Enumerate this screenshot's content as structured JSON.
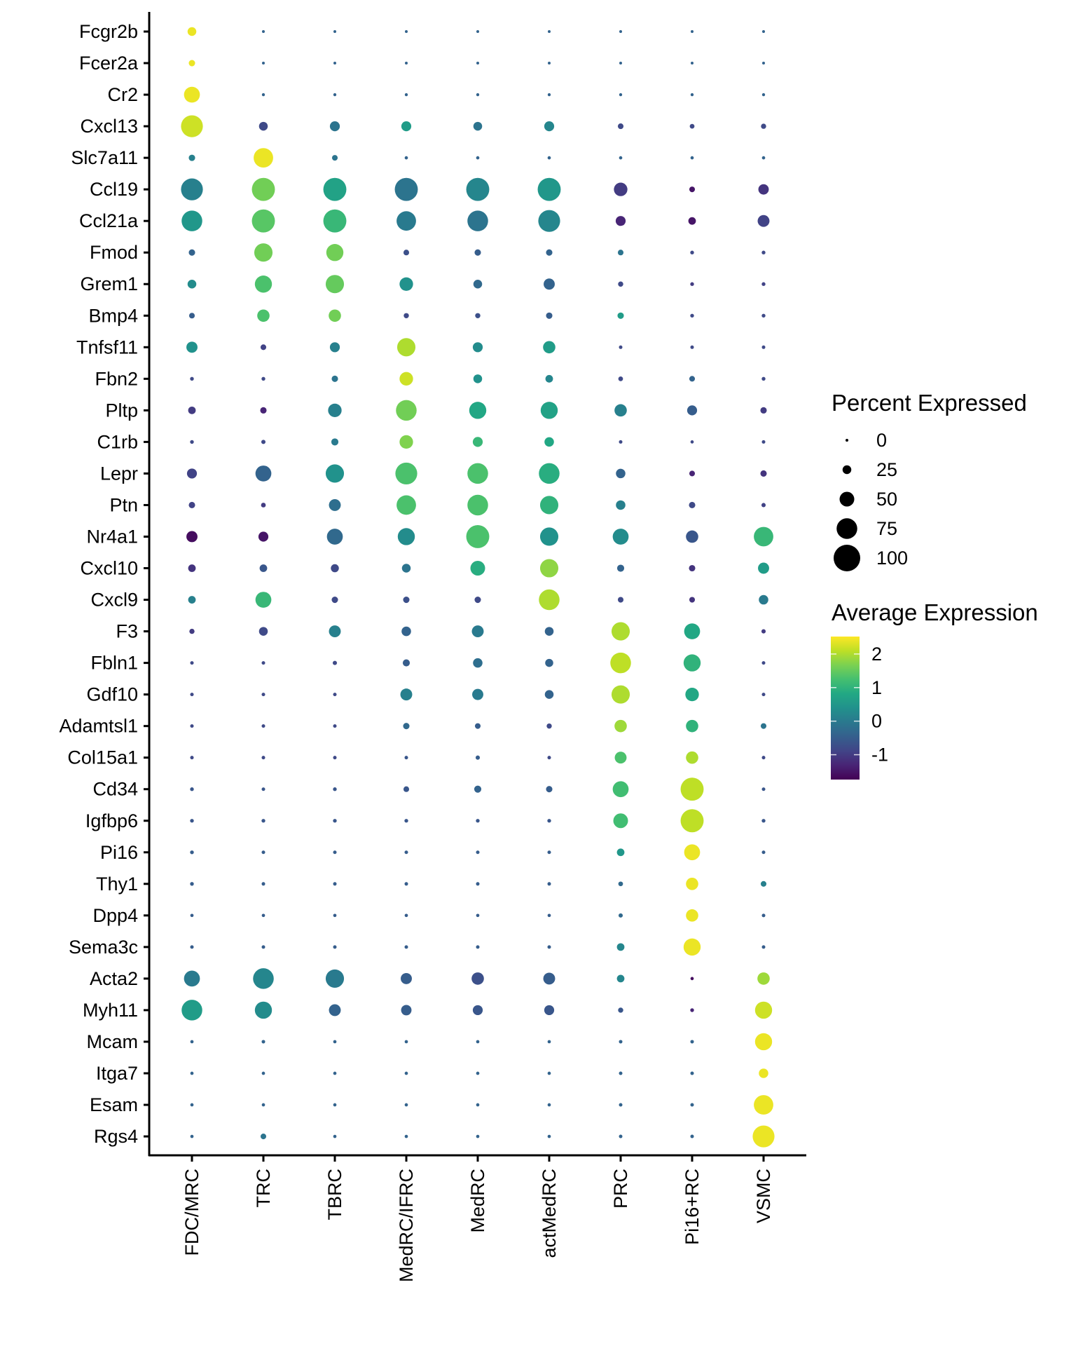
{
  "chart_data": {
    "type": "scatter",
    "subtype": "dot-plot",
    "title": "",
    "xlabel": "",
    "ylabel": "",
    "grid": false,
    "categories_x": [
      "FDC/MRC",
      "TRC",
      "TBRC",
      "MedRC/IFRC",
      "MedRC",
      "actMedRC",
      "PRC",
      "Pi16+RC",
      "VSMC"
    ],
    "genes_y": [
      "Fcgr2b",
      "Fcer2a",
      "Cr2",
      "Cxcl13",
      "Slc7a11",
      "Ccl19",
      "Ccl21a",
      "Fmod",
      "Grem1",
      "Bmp4",
      "Tnfsf11",
      "Fbn2",
      "Pltp",
      "C1rb",
      "Lepr",
      "Ptn",
      "Nr4a1",
      "Cxcl10",
      "Cxcl9",
      "F3",
      "Fbln1",
      "Gdf10",
      "Adamtsl1",
      "Col15a1",
      "Cd34",
      "Igfbp6",
      "Pi16",
      "Thy1",
      "Dpp4",
      "Sema3c",
      "Acta2",
      "Myh11",
      "Mcam",
      "Itga7",
      "Esam",
      "Rgs4"
    ],
    "percent_expressed": [
      [
        25,
        0,
        0,
        0,
        0,
        0,
        0,
        0,
        0
      ],
      [
        15,
        0,
        0,
        0,
        0,
        0,
        0,
        0,
        0
      ],
      [
        55,
        1,
        1,
        1,
        1,
        1,
        1,
        1,
        1
      ],
      [
        80,
        25,
        30,
        30,
        25,
        30,
        12,
        8,
        10
      ],
      [
        15,
        70,
        12,
        2,
        2,
        2,
        2,
        2,
        2
      ],
      [
        80,
        85,
        85,
        85,
        85,
        85,
        45,
        12,
        32
      ],
      [
        75,
        85,
        85,
        70,
        75,
        80,
        30,
        20,
        38
      ],
      [
        15,
        65,
        60,
        12,
        15,
        15,
        12,
        4,
        4
      ],
      [
        25,
        60,
        65,
        45,
        25,
        35,
        10,
        4,
        4
      ],
      [
        12,
        40,
        40,
        10,
        10,
        15,
        15,
        4,
        4
      ],
      [
        35,
        12,
        30,
        65,
        30,
        40,
        3,
        3,
        3
      ],
      [
        4,
        4,
        15,
        45,
        25,
        20,
        8,
        12,
        4
      ],
      [
        20,
        15,
        45,
        75,
        60,
        60,
        40,
        30,
        15
      ],
      [
        4,
        6,
        18,
        45,
        30,
        28,
        3,
        2,
        3
      ],
      [
        30,
        55,
        65,
        80,
        75,
        75,
        28,
        12,
        15
      ],
      [
        15,
        8,
        38,
        70,
        75,
        65,
        28,
        15,
        6
      ],
      [
        35,
        30,
        55,
        60,
        85,
        65,
        55,
        40,
        70
      ],
      [
        20,
        20,
        22,
        25,
        50,
        65,
        18,
        15,
        35
      ],
      [
        20,
        55,
        15,
        15,
        15,
        75,
        12,
        12,
        28
      ],
      [
        10,
        25,
        38,
        28,
        38,
        25,
        65,
        55,
        6
      ],
      [
        3,
        3,
        6,
        18,
        28,
        22,
        75,
        60,
        3
      ],
      [
        3,
        3,
        3,
        38,
        35,
        25,
        65,
        45,
        3
      ],
      [
        3,
        3,
        3,
        15,
        12,
        10,
        40,
        40,
        12
      ],
      [
        3,
        3,
        3,
        3,
        6,
        3,
        38,
        40,
        3
      ],
      [
        4,
        3,
        4,
        12,
        18,
        15,
        55,
        85,
        3
      ],
      [
        4,
        4,
        4,
        4,
        4,
        4,
        50,
        85,
        4
      ],
      [
        4,
        3,
        3,
        3,
        3,
        3,
        20,
        55,
        3
      ],
      [
        4,
        3,
        3,
        3,
        3,
        3,
        8,
        40,
        12
      ],
      [
        2,
        2,
        2,
        2,
        2,
        2,
        6,
        40,
        3
      ],
      [
        3,
        3,
        3,
        3,
        3,
        3,
        20,
        60,
        3
      ],
      [
        55,
        75,
        65,
        35,
        40,
        38,
        20,
        2,
        40
      ],
      [
        75,
        60,
        38,
        32,
        30,
        30,
        10,
        4,
        60
      ],
      [
        2,
        3,
        2,
        2,
        2,
        2,
        3,
        3,
        60
      ],
      [
        2,
        2,
        2,
        2,
        2,
        2,
        3,
        3,
        28
      ],
      [
        2,
        2,
        2,
        2,
        2,
        2,
        3,
        3,
        70
      ],
      [
        2,
        12,
        2,
        2,
        2,
        2,
        3,
        3,
        80
      ]
    ],
    "average_expression": [
      [
        2.4,
        -0.4,
        -0.4,
        -0.4,
        -0.4,
        -0.4,
        -0.4,
        -0.4,
        -0.4
      ],
      [
        2.4,
        -0.4,
        -0.4,
        -0.4,
        -0.4,
        -0.4,
        -0.4,
        -0.4,
        -0.4
      ],
      [
        2.4,
        -0.4,
        -0.4,
        -0.4,
        -0.4,
        -0.4,
        -0.4,
        -0.4,
        -0.4
      ],
      [
        2.2,
        -0.8,
        -0.1,
        0.6,
        -0.1,
        0.2,
        -0.8,
        -0.8,
        -0.8
      ],
      [
        0.1,
        2.4,
        -0.1,
        -0.4,
        -0.4,
        -0.4,
        -0.4,
        -0.4,
        -0.4
      ],
      [
        0.1,
        1.6,
        0.7,
        -0.1,
        0.2,
        0.5,
        -1.0,
        -1.5,
        -1.1
      ],
      [
        0.5,
        1.4,
        1.1,
        0.0,
        -0.1,
        0.2,
        -1.3,
        -1.5,
        -0.9
      ],
      [
        -0.4,
        1.6,
        1.6,
        -0.7,
        -0.5,
        -0.4,
        -0.1,
        -0.8,
        -0.8
      ],
      [
        0.3,
        1.3,
        1.5,
        0.4,
        -0.3,
        -0.4,
        -0.8,
        -1.0,
        -0.9
      ],
      [
        -0.5,
        1.3,
        1.6,
        -0.8,
        -0.7,
        -0.5,
        0.6,
        -0.8,
        -0.8
      ],
      [
        0.4,
        -0.9,
        0.1,
        2.0,
        0.3,
        0.6,
        -0.8,
        -0.8,
        -0.8
      ],
      [
        -0.8,
        -0.8,
        -0.1,
        2.2,
        0.4,
        0.2,
        -0.8,
        -0.4,
        -0.8
      ],
      [
        -1.0,
        -1.3,
        0.1,
        1.6,
        0.8,
        0.7,
        0.1,
        -0.5,
        -1.0
      ],
      [
        -0.8,
        -0.8,
        0.0,
        1.7,
        1.1,
        0.8,
        -0.8,
        -0.8,
        -0.8
      ],
      [
        -0.9,
        -0.4,
        0.4,
        1.3,
        1.3,
        0.9,
        -0.4,
        -1.3,
        -1.1
      ],
      [
        -0.9,
        -1.0,
        -0.2,
        1.3,
        1.3,
        1.0,
        0.1,
        -0.8,
        -0.9
      ],
      [
        -1.6,
        -1.5,
        -0.3,
        0.3,
        1.3,
        0.4,
        0.3,
        -0.6,
        1.1
      ],
      [
        -1.1,
        -0.6,
        -0.8,
        -0.1,
        0.9,
        1.8,
        -0.4,
        -1.1,
        0.6
      ],
      [
        0.1,
        1.1,
        -0.8,
        -0.7,
        -0.8,
        2.0,
        -0.8,
        -1.1,
        0.0
      ],
      [
        -1.0,
        -0.8,
        0.1,
        -0.4,
        0.0,
        -0.4,
        2.0,
        0.8,
        -1.0
      ],
      [
        -0.8,
        -0.8,
        -0.8,
        -0.5,
        -0.2,
        -0.4,
        2.1,
        1.0,
        -0.8
      ],
      [
        -0.8,
        -0.8,
        -0.8,
        0.1,
        0.0,
        -0.4,
        2.0,
        0.8,
        -0.8
      ],
      [
        -0.8,
        -0.8,
        -0.8,
        -0.3,
        -0.5,
        -0.8,
        1.9,
        1.0,
        -0.1
      ],
      [
        -0.8,
        -0.8,
        -0.8,
        -0.6,
        -0.5,
        -0.8,
        1.3,
        2.0,
        -0.8
      ],
      [
        -0.6,
        -0.6,
        -0.6,
        -0.6,
        -0.4,
        -0.5,
        1.2,
        2.1,
        -0.6
      ],
      [
        -0.6,
        -0.6,
        -0.6,
        -0.6,
        -0.6,
        -0.6,
        1.2,
        2.1,
        -0.6
      ],
      [
        -0.5,
        -0.5,
        -0.5,
        -0.5,
        -0.5,
        -0.5,
        0.5,
        2.4,
        -0.5
      ],
      [
        -0.5,
        -0.5,
        -0.5,
        -0.5,
        -0.5,
        -0.5,
        -0.3,
        2.4,
        0.1
      ],
      [
        -0.5,
        -0.5,
        -0.5,
        -0.5,
        -0.5,
        -0.5,
        -0.3,
        2.4,
        -0.5
      ],
      [
        -0.5,
        -0.5,
        -0.5,
        -0.5,
        -0.5,
        -0.5,
        0.2,
        2.4,
        -0.5
      ],
      [
        0.0,
        0.2,
        0.0,
        -0.5,
        -0.7,
        -0.5,
        0.2,
        -1.6,
        1.9
      ],
      [
        0.6,
        0.3,
        -0.4,
        -0.5,
        -0.6,
        -0.6,
        -0.6,
        -1.3,
        2.2
      ],
      [
        -0.4,
        -0.4,
        -0.4,
        -0.4,
        -0.4,
        -0.4,
        -0.4,
        -0.4,
        2.4
      ],
      [
        -0.4,
        -0.4,
        -0.4,
        -0.4,
        -0.4,
        -0.4,
        -0.4,
        -0.4,
        2.4
      ],
      [
        -0.4,
        -0.4,
        -0.4,
        -0.4,
        -0.4,
        -0.4,
        -0.4,
        -0.4,
        2.4
      ],
      [
        -0.4,
        -0.1,
        -0.4,
        -0.4,
        -0.4,
        -0.4,
        -0.4,
        -0.4,
        2.4
      ]
    ],
    "size_legend": {
      "title": "Percent Expressed",
      "values": [
        0,
        25,
        50,
        75,
        100
      ],
      "labels": [
        "0",
        "25",
        "50",
        "75",
        "100"
      ]
    },
    "color_legend": {
      "title": "Average Expression",
      "colormap": "viridis",
      "range": [
        -1.74,
        2.52
      ],
      "ticks": [
        2,
        1,
        0,
        -1
      ],
      "labels": [
        "2",
        "1",
        "0",
        "-1"
      ]
    },
    "size_range": [
      0,
      100
    ],
    "legend_position": "right"
  }
}
